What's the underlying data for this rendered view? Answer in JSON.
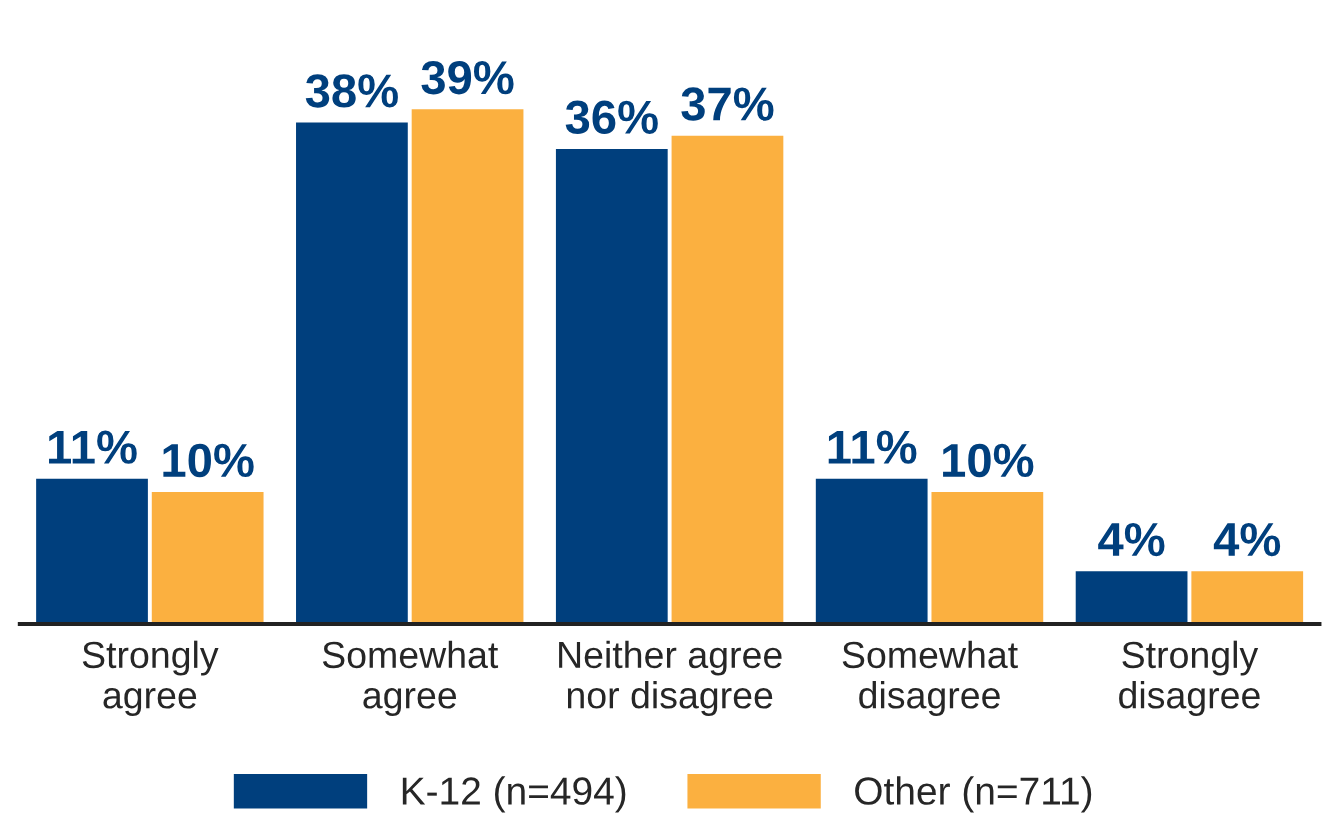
{
  "chart_data": {
    "type": "bar",
    "categories": [
      "Strongly\nagree",
      "Somewhat\nagree",
      "Neither agree\nnor disagree",
      "Somewhat\ndisagree",
      "Strongly\ndisagree"
    ],
    "series": [
      {
        "name": "K-12 (n=494)",
        "color": "#003f7d",
        "values": [
          11,
          38,
          36,
          11,
          4
        ],
        "value_labels": [
          "11%",
          "38%",
          "36%",
          "11%",
          "4%"
        ]
      },
      {
        "name": "Other (n=711)",
        "color": "#fbb040",
        "values": [
          10,
          39,
          37,
          10,
          4
        ],
        "value_labels": [
          "10%",
          "39%",
          "37%",
          "10%",
          "4%"
        ]
      }
    ],
    "legend": "bottom",
    "grid": false
  }
}
